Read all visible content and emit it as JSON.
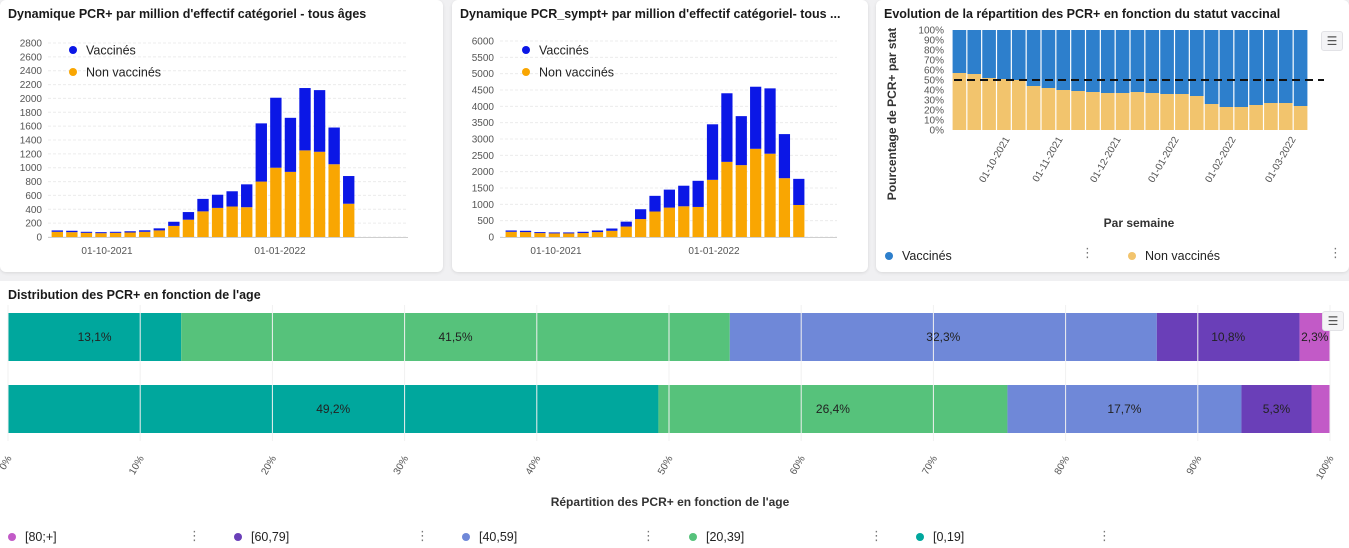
{
  "colors": {
    "vaccinated": "#0b17e6",
    "unvaccinated": "#f9a602",
    "share_vaccinated": "#2d7fcc",
    "share_unvaccinated": "#f2c46d",
    "age_80_plus": "#c25ac7",
    "age_60_79": "#6a3fb8",
    "age_40_59": "#6f88d8",
    "age_20_39": "#56c27b",
    "age_0_19": "#00a79d"
  },
  "icons": {
    "menu": "list-menu-icon",
    "kebab": "vertical-dots-icon"
  },
  "chart_data": [
    {
      "type": "bar",
      "stacked": true,
      "title": "Dynamique PCR+ par million d'effectif catégoriel - tous âges",
      "x_tick_labels": [
        "01-10-2021",
        "01-01-2022"
      ],
      "ylim": [
        0,
        2800
      ],
      "yticks": [
        0,
        200,
        400,
        600,
        800,
        1000,
        1200,
        1400,
        1600,
        1800,
        2000,
        2200,
        2400,
        2600,
        2800
      ],
      "legend": "top-left",
      "grid": true,
      "series": [
        {
          "name": "Non vaccinés",
          "color_key": "unvaccinated",
          "values": [
            75,
            70,
            60,
            55,
            60,
            65,
            75,
            95,
            160,
            250,
            370,
            420,
            440,
            430,
            800,
            1000,
            940,
            1250,
            1230,
            1050,
            480
          ]
        },
        {
          "name": "Vaccinés",
          "color_key": "vaccinated",
          "values": [
            20,
            20,
            15,
            15,
            15,
            18,
            22,
            30,
            60,
            110,
            180,
            190,
            220,
            330,
            840,
            1010,
            780,
            900,
            890,
            530,
            400
          ]
        }
      ]
    },
    {
      "type": "bar",
      "stacked": true,
      "title": "Dynamique PCR_sympt+ par million d'effectif catégoriel- tous ...",
      "x_tick_labels": [
        "01-10-2021",
        "01-01-2022"
      ],
      "ylim": [
        0,
        6000
      ],
      "yticks": [
        0,
        500,
        1000,
        1500,
        2000,
        2500,
        3000,
        3500,
        4000,
        4500,
        5000,
        5500,
        6000
      ],
      "legend": "top-left",
      "grid": true,
      "series": [
        {
          "name": "Non vaccinés",
          "color_key": "unvaccinated",
          "values": [
            160,
            150,
            120,
            110,
            110,
            120,
            150,
            190,
            320,
            550,
            780,
            900,
            940,
            920,
            1750,
            2300,
            2200,
            2700,
            2550,
            1800,
            980
          ]
        },
        {
          "name": "Vaccinés",
          "color_key": "vaccinated",
          "values": [
            40,
            40,
            30,
            30,
            30,
            40,
            50,
            70,
            150,
            300,
            480,
            550,
            630,
            800,
            1700,
            2100,
            1500,
            1900,
            2000,
            1350,
            800
          ]
        }
      ]
    },
    {
      "type": "bar",
      "stacked": true,
      "percent": true,
      "title": "Evolution de la répartition des PCR+ en fonction du statut vaccinal",
      "ylabel": "Pourcentage de PCR+ par stat",
      "xlabel": "Par semaine",
      "yticks": [
        "0%",
        "10%",
        "20%",
        "30%",
        "40%",
        "50%",
        "60%",
        "70%",
        "80%",
        "90%",
        "100%"
      ],
      "x_tick_labels": [
        "01-10-2021",
        "01-11-2021",
        "01-12-2021",
        "01-01-2022",
        "01-02-2022",
        "01-03-2022"
      ],
      "reference_line": 50,
      "legend": "bottom",
      "series": [
        {
          "name": "Non vaccinés",
          "color_key": "share_unvaccinated",
          "values": [
            57,
            56,
            52,
            51,
            50,
            44,
            42,
            40,
            39,
            38,
            37,
            37,
            38,
            37,
            36,
            36,
            34,
            26,
            23,
            23,
            25,
            27,
            27,
            24
          ]
        },
        {
          "name": "Vaccinés",
          "color_key": "share_vaccinated",
          "values": [
            43,
            44,
            48,
            49,
            50,
            56,
            58,
            60,
            61,
            62,
            63,
            63,
            62,
            63,
            64,
            64,
            66,
            74,
            77,
            77,
            75,
            73,
            73,
            76
          ]
        }
      ]
    },
    {
      "type": "bar",
      "stacked": true,
      "percent": true,
      "orientation": "horizontal",
      "title": "Distribution des PCR+ en fonction de l'age",
      "xlabel": "Répartition des PCR+ en fonction de l'age",
      "xticks": [
        "0%",
        "10%",
        "20%",
        "30%",
        "40%",
        "50%",
        "60%",
        "70%",
        "80%",
        "90%",
        "100%"
      ],
      "legend": "bottom",
      "series_order": [
        "[0,19]",
        "[20,39]",
        "[40,59]",
        "[60,79]",
        "[80;+]"
      ],
      "legend_order": [
        "[80;+]",
        "[60,79]",
        "[40,59]",
        "[20,39]",
        "[0,19]"
      ],
      "series_colors": {
        "[0,19]": "age_0_19",
        "[20,39]": "age_20_39",
        "[40,59]": "age_40_59",
        "[60,79]": "age_60_79",
        "[80;+]": "age_80_plus"
      },
      "rows": [
        {
          "values": [
            13.1,
            41.5,
            32.3,
            10.8,
            2.3
          ],
          "labels": [
            "13,1%",
            "41,5%",
            "32,3%",
            "10,8%",
            "2,3%"
          ]
        },
        {
          "values": [
            49.2,
            26.4,
            17.7,
            5.3,
            1.4
          ],
          "labels": [
            "49,2%",
            "26,4%",
            "17,7%",
            "5,3%",
            ""
          ]
        }
      ]
    }
  ]
}
